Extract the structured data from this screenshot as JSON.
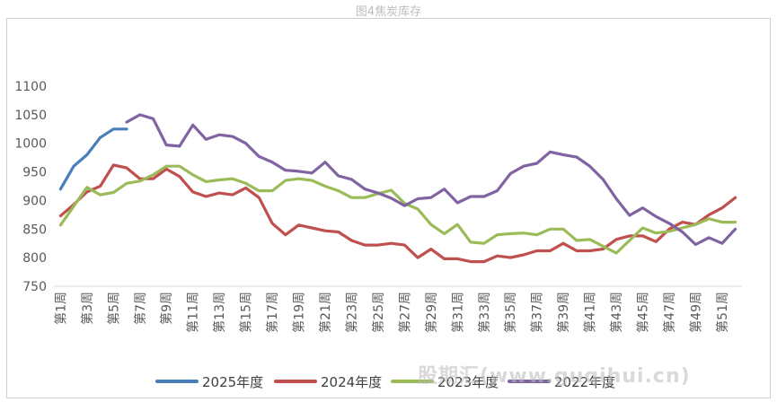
{
  "title": "图4焦炭库存",
  "watermark": "股期汇(www.guqihui.cn)",
  "colors": {
    "2025年度": "#4a7ebb",
    "2024年度": "#c0504d",
    "2023年度": "#9bbb59",
    "2022年度": "#8064a2"
  },
  "chart_data": {
    "type": "line",
    "title": "图4焦炭库存",
    "xlabel": "",
    "ylabel": "",
    "ylim": [
      750,
      1100
    ],
    "yticks": [
      750,
      800,
      850,
      900,
      950,
      1000,
      1050,
      1100
    ],
    "grid": false,
    "legend": "bottom",
    "categories": [
      "第1周",
      "第2周",
      "第3周",
      "第4周",
      "第5周",
      "第6周",
      "第7周",
      "第8周",
      "第9周",
      "第10周",
      "第11周",
      "第12周",
      "第13周",
      "第14周",
      "第15周",
      "第16周",
      "第17周",
      "第18周",
      "第19周",
      "第20周",
      "第21周",
      "第22周",
      "第23周",
      "第24周",
      "第25周",
      "第26周",
      "第27周",
      "第28周",
      "第29周",
      "第30周",
      "第31周",
      "第32周",
      "第33周",
      "第34周",
      "第35周",
      "第36周",
      "第37周",
      "第38周",
      "第39周",
      "第40周",
      "第41周",
      "第42周",
      "第43周",
      "第44周",
      "第45周",
      "第46周",
      "第47周",
      "第48周",
      "第49周",
      "第50周",
      "第51周",
      "第52周"
    ],
    "tick_labels": [
      "第1周",
      "第3周",
      "第5周",
      "第7周",
      "第9周",
      "第11周",
      "第13周",
      "第15周",
      "第17周",
      "第19周",
      "第21周",
      "第23周",
      "第25周",
      "第27周",
      "第29周",
      "第31周",
      "第33周",
      "第35周",
      "第37周",
      "第39周",
      "第41周",
      "第43周",
      "第45周",
      "第47周",
      "第49周",
      "第51周"
    ],
    "series": [
      {
        "name": "2025年度",
        "values": [
          920,
          960,
          980,
          1010,
          1025,
          1025,
          null,
          null,
          null,
          null,
          null,
          null,
          null,
          null,
          null,
          null,
          null,
          null,
          null,
          null,
          null,
          null,
          null,
          null,
          null,
          null,
          null,
          null,
          null,
          null,
          null,
          null,
          null,
          null,
          null,
          null,
          null,
          null,
          null,
          null,
          null,
          null,
          null,
          null,
          null,
          null,
          null,
          null,
          null,
          null,
          null,
          null
        ]
      },
      {
        "name": "2024年度",
        "values": [
          873,
          893,
          915,
          925,
          962,
          957,
          938,
          938,
          955,
          942,
          915,
          907,
          913,
          910,
          922,
          905,
          860,
          840,
          857,
          852,
          847,
          845,
          830,
          822,
          822,
          825,
          822,
          800,
          815,
          798,
          798,
          793,
          793,
          803,
          800,
          805,
          812,
          812,
          825,
          812,
          812,
          815,
          832,
          838,
          838,
          828,
          850,
          862,
          858,
          875,
          887,
          905
        ]
      },
      {
        "name": "2023年度",
        "values": [
          857,
          890,
          923,
          910,
          914,
          930,
          934,
          945,
          960,
          960,
          945,
          933,
          936,
          938,
          930,
          917,
          917,
          935,
          938,
          935,
          925,
          917,
          905,
          905,
          912,
          918,
          895,
          885,
          858,
          842,
          858,
          827,
          825,
          840,
          842,
          843,
          840,
          850,
          850,
          830,
          832,
          820,
          808,
          830,
          852,
          843,
          846,
          852,
          858,
          868,
          862,
          862
        ]
      },
      {
        "name": "2022年度",
        "values": [
          null,
          null,
          null,
          null,
          null,
          1037,
          1050,
          1043,
          997,
          995,
          1032,
          1007,
          1015,
          1012,
          1000,
          977,
          967,
          953,
          951,
          948,
          967,
          943,
          937,
          920,
          913,
          904,
          891,
          903,
          905,
          920,
          896,
          907,
          907,
          917,
          947,
          960,
          965,
          985,
          980,
          976,
          960,
          937,
          903,
          874,
          887,
          872,
          860,
          845,
          823,
          835,
          825,
          850
        ]
      }
    ]
  }
}
